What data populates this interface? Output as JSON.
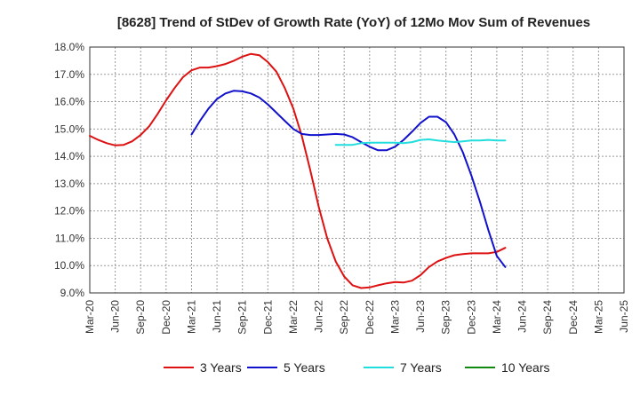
{
  "chart_data": {
    "type": "line",
    "title": "[8628]  Trend of StDev of Growth Rate (YoY) of 12Mo Mov Sum of Revenues",
    "xlabel": "",
    "ylabel": "",
    "ylim": [
      9.0,
      18.0
    ],
    "yticks": [
      9.0,
      10.0,
      11.0,
      12.0,
      13.0,
      14.0,
      15.0,
      16.0,
      17.0,
      18.0
    ],
    "ytick_labels": [
      "9.0%",
      "10.0%",
      "11.0%",
      "12.0%",
      "13.0%",
      "14.0%",
      "15.0%",
      "16.0%",
      "17.0%",
      "18.0%"
    ],
    "x_categories": [
      "Mar-20",
      "Jun-20",
      "Sep-20",
      "Dec-20",
      "Mar-21",
      "Jun-21",
      "Sep-21",
      "Dec-21",
      "Mar-22",
      "Jun-22",
      "Sep-22",
      "Dec-22",
      "Mar-23",
      "Jun-23",
      "Sep-23",
      "Dec-23",
      "Mar-24",
      "Jun-24",
      "Sep-24",
      "Dec-24",
      "Mar-25",
      "Jun-25"
    ],
    "grid": true,
    "legend_position": "bottom",
    "series": [
      {
        "name": "3 Years",
        "color": "#dd1111",
        "start_index": 0,
        "values": [
          14.75,
          14.6,
          14.48,
          14.4,
          14.42,
          14.55,
          14.78,
          15.1,
          15.55,
          16.05,
          16.5,
          16.9,
          17.15,
          17.25,
          17.25,
          17.3,
          17.38,
          17.5,
          17.65,
          17.75,
          17.7,
          17.45,
          17.1,
          16.5,
          15.75,
          14.75,
          13.5,
          12.15,
          11.0,
          10.15,
          9.6,
          9.28,
          9.18,
          9.2,
          9.28,
          9.35,
          9.4,
          9.38,
          9.45,
          9.65,
          9.95,
          10.15,
          10.28,
          10.38,
          10.42,
          10.45,
          10.45,
          10.45,
          10.5,
          10.65
        ]
      },
      {
        "name": "5 Years",
        "color": "#1111cc",
        "start_index": 12,
        "values": [
          14.8,
          15.3,
          15.75,
          16.1,
          16.3,
          16.4,
          16.38,
          16.3,
          16.15,
          15.9,
          15.6,
          15.3,
          15.0,
          14.82,
          14.78,
          14.78,
          14.8,
          14.82,
          14.8,
          14.7,
          14.52,
          14.35,
          14.22,
          14.22,
          14.35,
          14.6,
          14.9,
          15.22,
          15.45,
          15.45,
          15.25,
          14.8,
          14.15,
          13.3,
          12.35,
          11.3,
          10.35,
          9.95
        ]
      },
      {
        "name": "7 Years",
        "color": "#22dddd",
        "start_index": 29,
        "values": [
          14.42,
          14.42,
          14.42,
          14.48,
          14.5,
          14.5,
          14.5,
          14.5,
          14.48,
          14.52,
          14.6,
          14.62,
          14.58,
          14.55,
          14.52,
          14.55,
          14.58,
          14.58,
          14.6,
          14.58,
          14.58
        ]
      },
      {
        "name": "10 Years",
        "color": "#118811",
        "start_index": 0,
        "values": []
      }
    ]
  }
}
